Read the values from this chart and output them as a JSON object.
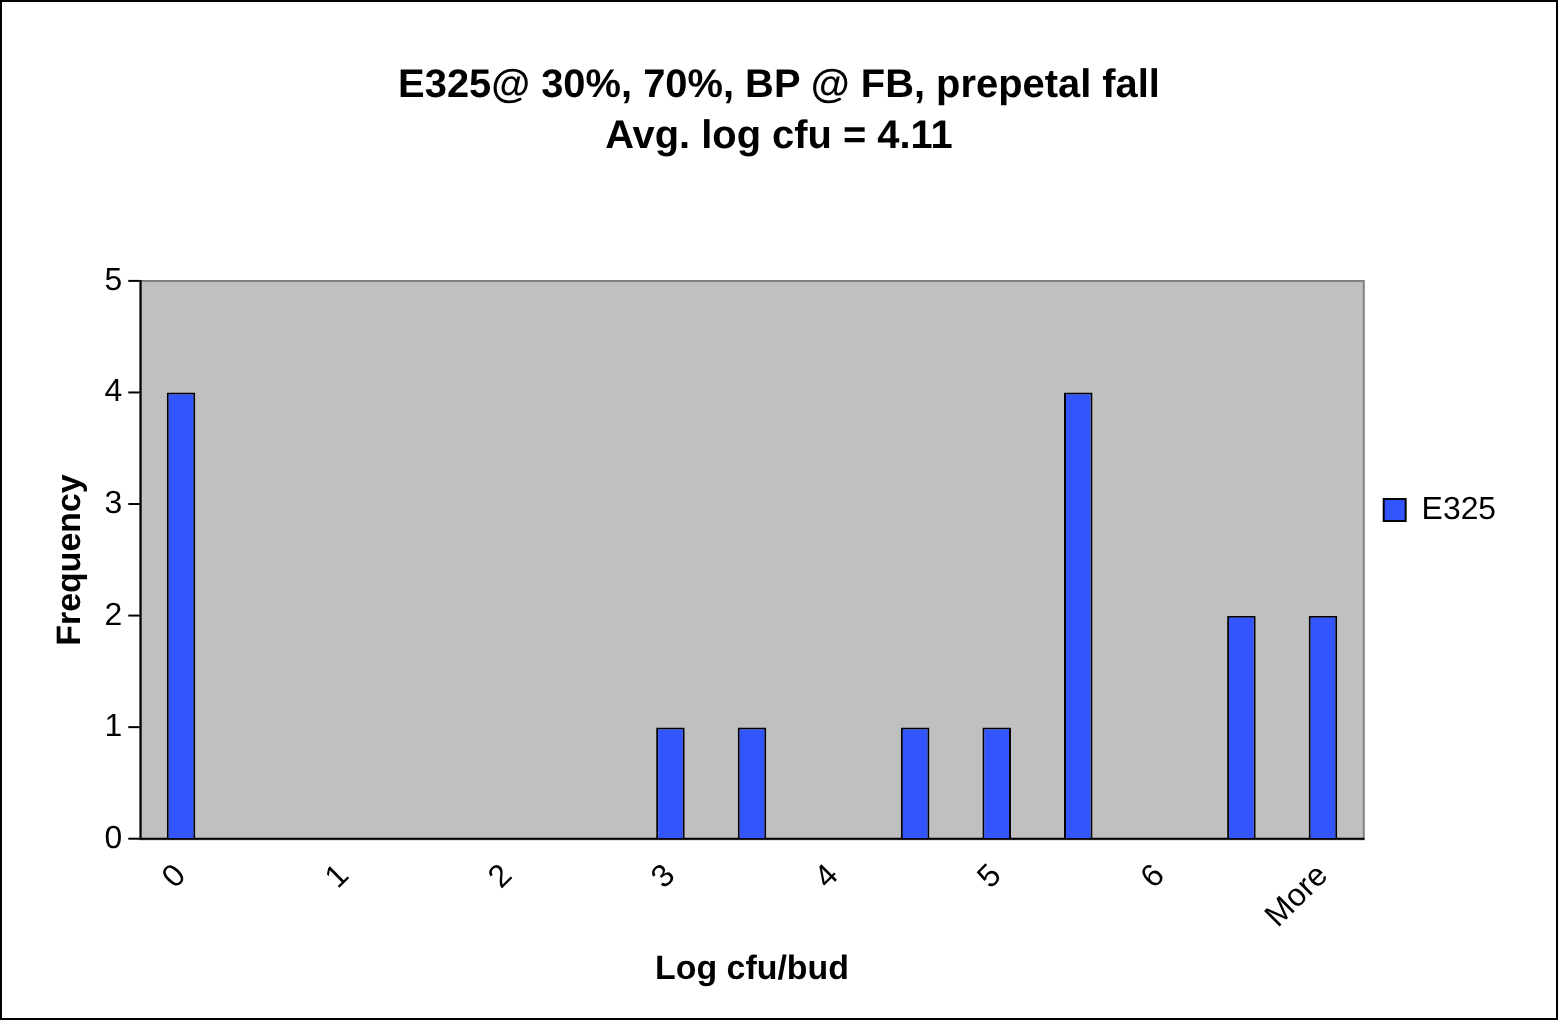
{
  "chart_data": {
    "type": "bar",
    "title": "E325@ 30%, 70%, BP @ FB, prepetal fall",
    "subtitle": "Avg. log cfu = 4.11",
    "xlabel": "Log cfu/bud",
    "ylabel": "Frequency",
    "categories": [
      "0",
      null,
      "1",
      null,
      "2",
      null,
      "3",
      null,
      "4",
      null,
      "5",
      null,
      "6",
      null,
      "More"
    ],
    "series": [
      {
        "name": "E325",
        "color": "#3355ff",
        "values": [
          4,
          0,
          0,
          0,
          0,
          0,
          1,
          1,
          0,
          1,
          1,
          4,
          0,
          2,
          2
        ]
      }
    ],
    "ylim": [
      0,
      5
    ],
    "yticks": [
      0,
      1,
      2,
      3,
      4,
      5
    ],
    "grid": false,
    "legend": "right"
  }
}
